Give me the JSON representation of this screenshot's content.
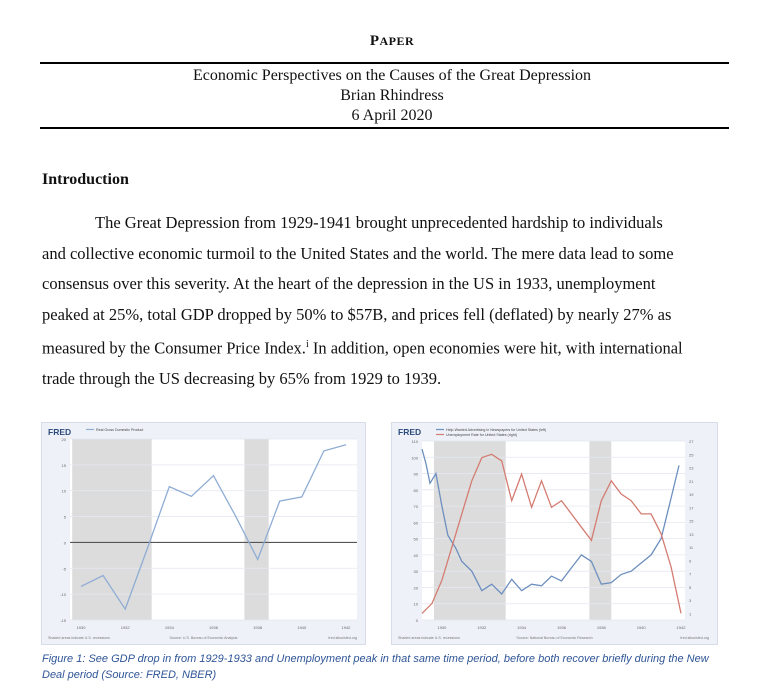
{
  "header": {
    "label_first": "P",
    "label_rest": "APER",
    "title": "Economic Perspectives on the Causes of the Great Depression",
    "author": "Brian Rhindress",
    "date": "6 April 2020"
  },
  "section": {
    "heading": "Introduction",
    "lines": [
      "The Great Depression from 1929-1941 brought unprecedented hardship to individuals",
      "and collective economic turmoil to the United States and the world. The mere data lead to some",
      "consensus over this severity. At the heart of the depression in the US in 1933, unemployment",
      "peaked at 25%, total GDP dropped by 50% to $57B, and prices fell (deflated) by nearly 27% as"
    ],
    "line5_before": "measured by the Consumer Price Index.",
    "footnote_mark": "i",
    "line5_after": " In addition, open economies were hit, with international",
    "line6": "trade through the US decreasing by 65% from 1929 to 1939."
  },
  "figures": {
    "caption": "Figure 1: See GDP drop in from 1929-1933 and Unemployment peak in that same time period, before both recover briefly during the New Deal period (Source: FRED, NBER)"
  },
  "chart_data": [
    {
      "type": "line",
      "logo": "FRED",
      "series": [
        {
          "name": "Real Gross Domestic Product",
          "color": "#8fadd4",
          "x": [
            1930,
            1931,
            1932,
            1933,
            1934,
            1935,
            1936,
            1937,
            1938,
            1939,
            1940,
            1941,
            1942
          ],
          "values": [
            -8.5,
            -6.4,
            -12.9,
            -1.2,
            10.8,
            8.9,
            12.9,
            5.1,
            -3.3,
            8.0,
            8.8,
            17.7,
            18.9
          ]
        }
      ],
      "ylim": [
        -15,
        20
      ],
      "yticks": [
        -15,
        -10,
        -5,
        0,
        5,
        10,
        15,
        20
      ],
      "xlim": [
        1929.5,
        1942.5
      ],
      "xticks": [
        1930,
        1932,
        1934,
        1936,
        1938,
        1940,
        1942
      ],
      "recessions": [
        [
          1929.6,
          1933.2
        ],
        [
          1937.4,
          1938.5
        ]
      ],
      "zero_line": true,
      "footer": {
        "left": "Shaded areas indicate U.S. recessions",
        "middle": "Source: U.S. Bureau of Economic Analysis",
        "right": "fred.stlouisfed.org"
      }
    },
    {
      "type": "line",
      "logo": "FRED",
      "series": [
        {
          "name": "Help-Wanted Advertising in Newspapers for United States (left)",
          "color": "#6d8fbf",
          "x": [
            1929.0,
            1929.2,
            1929.4,
            1929.7,
            1930.0,
            1930.3,
            1930.7,
            1931.0,
            1931.5,
            1932.0,
            1932.5,
            1933.0,
            1933.5,
            1934.0,
            1934.5,
            1935.0,
            1935.5,
            1936.0,
            1936.5,
            1937.0,
            1937.5,
            1938.0,
            1938.5,
            1939.0,
            1939.5,
            1940.0,
            1940.5,
            1941.0,
            1941.5,
            1941.9
          ],
          "values": [
            105,
            96,
            84,
            90,
            70,
            52,
            44,
            36,
            30,
            18,
            22,
            16,
            25,
            18,
            22,
            21,
            27,
            24,
            32,
            40,
            36,
            22,
            23,
            28,
            30,
            35,
            40,
            50,
            75,
            95
          ]
        },
        {
          "name": "Unemployment Rate for United States (right)",
          "color": "#d47c72",
          "x": [
            1929.0,
            1929.5,
            1930.0,
            1930.5,
            1931.0,
            1931.5,
            1932.0,
            1932.5,
            1933.0,
            1933.5,
            1934.0,
            1934.5,
            1935.0,
            1935.5,
            1936.0,
            1936.5,
            1937.0,
            1937.5,
            1938.0,
            1938.5,
            1939.0,
            1939.5,
            1940.0,
            1940.5,
            1941.0,
            1941.5,
            1942.0
          ],
          "values": [
            1,
            2.5,
            6,
            11,
            16,
            21,
            24.5,
            25,
            24,
            18,
            22,
            17,
            21,
            17,
            18,
            16,
            14,
            12,
            18,
            21,
            19,
            18,
            16,
            16,
            13,
            8,
            1
          ]
        }
      ],
      "ylim_left": [
        0,
        110
      ],
      "yticks_left": [
        0,
        10,
        20,
        30,
        40,
        50,
        60,
        70,
        80,
        90,
        100,
        110
      ],
      "ylim_right": [
        0,
        27
      ],
      "yticks_right": [
        1,
        3,
        5,
        7,
        9,
        11,
        13,
        15,
        17,
        19,
        21,
        23,
        25,
        27
      ],
      "xlim": [
        1929,
        1942.2
      ],
      "xticks": [
        1930,
        1932,
        1934,
        1936,
        1938,
        1940,
        1942
      ],
      "recessions": [
        [
          1929.6,
          1933.2
        ],
        [
          1937.4,
          1938.5
        ]
      ],
      "footer": {
        "left": "Shaded areas indicate U.S. recessions",
        "middle": "Source: National Bureau of Economic Research",
        "right": "fred.stlouisfed.org"
      }
    }
  ]
}
